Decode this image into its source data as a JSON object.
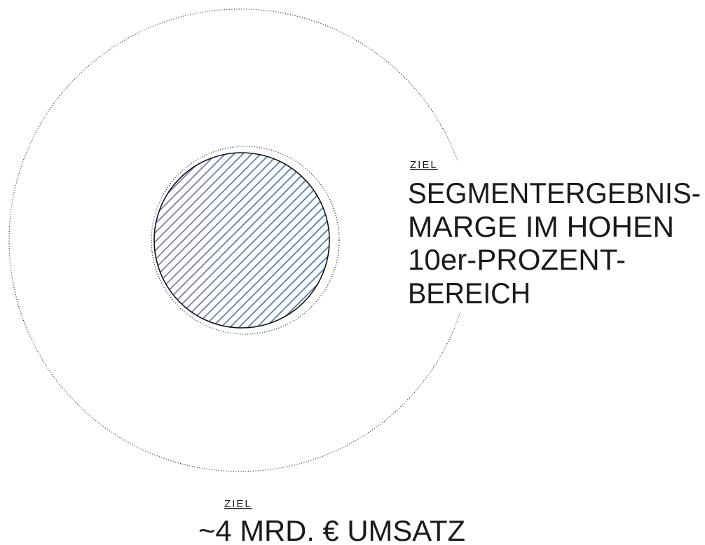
{
  "target_margin": {
    "label": "ZIEL",
    "lines": [
      "SEGMENTERGEBNIS-",
      "MARGE IM HOHEN",
      "10er-PROZENT-",
      "BEREICH"
    ]
  },
  "target_revenue": {
    "label": "ZIEL",
    "text": "~4 MRD. € UMSATZ"
  }
}
